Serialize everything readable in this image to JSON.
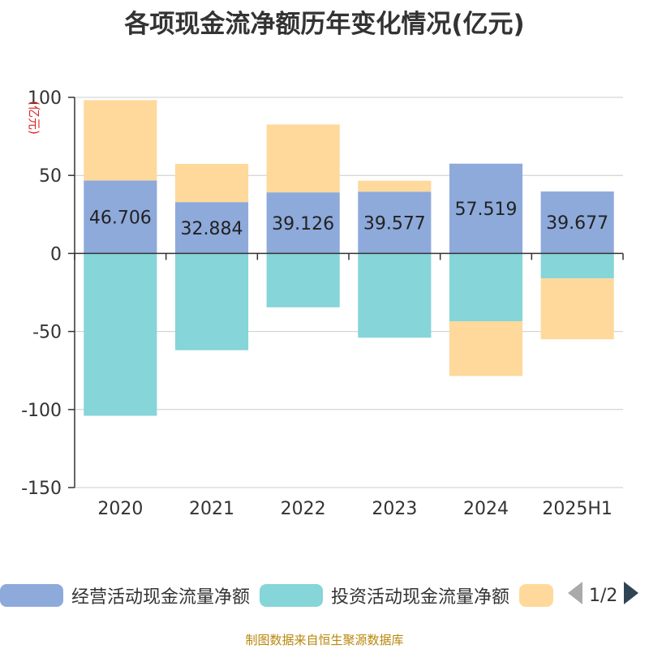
{
  "title": "各项现金流净额历年变化情况(亿元)",
  "footer": "制图数据来自恒生聚源数据库",
  "legend": {
    "items": [
      {
        "name": "经营活动现金流量净额",
        "color": "#8eaadb"
      },
      {
        "name": "投资活动现金流量净额",
        "color": "#86d5d8"
      },
      {
        "name": "",
        "color": "#fed99b"
      }
    ],
    "page": "1/2"
  },
  "chart_data": {
    "type": "bar",
    "stacked": true,
    "categories": [
      "2020",
      "2021",
      "2022",
      "2023",
      "2024",
      "2025H1"
    ],
    "ylabel": "(亿元)",
    "ylim": [
      -150,
      100
    ],
    "yticks": [
      100,
      50,
      0,
      -50,
      -100,
      -150
    ],
    "grid": true,
    "series": [
      {
        "name": "经营活动现金流量净额",
        "color": "#8eaadb",
        "values": [
          46.706,
          32.884,
          39.126,
          39.577,
          57.519,
          39.677
        ],
        "data_labels": [
          "46.706",
          "32.884",
          "39.126",
          "39.577",
          "57.519",
          "39.677"
        ]
      },
      {
        "name": "投资活动现金流量净额",
        "color": "#86d5d8",
        "values": [
          -104,
          -62,
          -34.5,
          -54,
          -43.5,
          -16
        ]
      },
      {
        "color": "#fed99b",
        "values": [
          51.5,
          24.5,
          43.5,
          7,
          -35,
          -39
        ]
      }
    ]
  }
}
